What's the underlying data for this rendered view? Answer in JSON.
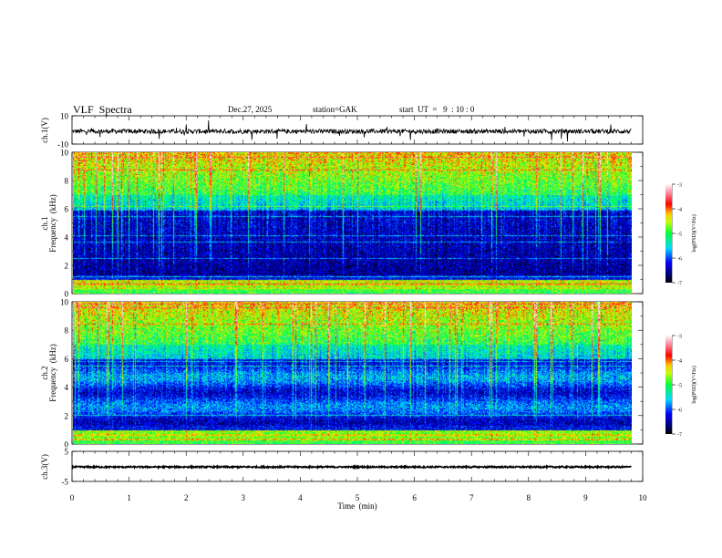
{
  "header": {
    "title": "VLF  Spectra",
    "date": "Dec.27, 2025",
    "station": "station=GAK",
    "start": "start  UT  =   9  : 10 : 0"
  },
  "chart_data": [
    {
      "type": "line",
      "name": "ch1-waveform",
      "ylabel": "ch.1(V)",
      "ylim": [
        -10,
        10
      ],
      "yticks": [
        "10",
        "-10"
      ],
      "xlim": [
        0,
        10
      ],
      "baseline": 0,
      "noise_amplitude": 2
    },
    {
      "type": "heatmap",
      "name": "ch1-spectrogram",
      "ylabel_top": "ch.1",
      "ylabel": "Frequency  (kHz)",
      "ylim": [
        0,
        10
      ],
      "yticks": [
        "0",
        "2",
        "4",
        "6",
        "8",
        "10"
      ],
      "xlim": [
        0,
        10
      ],
      "data_end_min": 9.8,
      "colorbar": {
        "label": "log(PSD)(V²/Hz)",
        "range": [
          -7,
          -3
        ],
        "ticks": [
          "-3",
          "-4",
          "-5",
          "-6",
          "-7"
        ]
      }
    },
    {
      "type": "heatmap",
      "name": "ch2-spectrogram",
      "ylabel_top": "ch.2",
      "ylabel": "Frequency  (kHz)",
      "ylim": [
        0,
        10
      ],
      "yticks": [
        "0",
        "2",
        "4",
        "6",
        "8",
        "10"
      ],
      "xlim": [
        0,
        10
      ],
      "data_end_min": 9.8,
      "colorbar": {
        "label": "log(PSD)(V²/Hz)",
        "range": [
          -7,
          -3
        ],
        "ticks": [
          "-3",
          "-4",
          "-5",
          "-6",
          "-7"
        ]
      }
    },
    {
      "type": "line",
      "name": "ch3-waveform",
      "ylabel": "ch.3(V)",
      "ylim": [
        -5,
        5
      ],
      "yticks": [
        "5",
        "-5"
      ],
      "xlim": [
        0,
        10
      ],
      "baseline": -0.2
    }
  ],
  "xaxis": {
    "label": "Time  (min)",
    "ticks": [
      "0",
      "1",
      "2",
      "3",
      "4",
      "5",
      "6",
      "7",
      "8",
      "9",
      "10"
    ]
  }
}
